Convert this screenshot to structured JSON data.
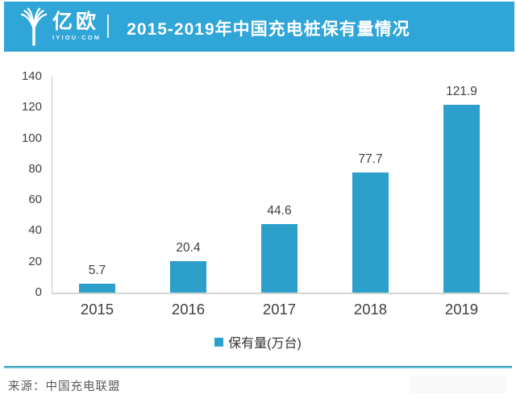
{
  "header": {
    "logo": {
      "brand_cn": "亿欧",
      "brand_en": "IYIOU·COM"
    },
    "title": "2015-2019年中国充电桩保有量情况"
  },
  "chart_data": {
    "type": "bar",
    "title": "2015-2019年中国充电桩保有量情况",
    "categories": [
      "2015",
      "2016",
      "2017",
      "2018",
      "2019"
    ],
    "values": [
      5.7,
      20.4,
      44.6,
      77.7,
      121.9
    ],
    "series_name": "保有量(万台)",
    "xlabel": "",
    "ylabel": "",
    "ylim": [
      0,
      140
    ],
    "yticks": [
      0,
      20,
      40,
      60,
      80,
      100,
      120,
      140
    ],
    "grid": false,
    "legend_position": "bottom",
    "bar_color": "#2c9fcb"
  },
  "legend": {
    "label": "保有量(万台)"
  },
  "footer": {
    "source": "来源：中国充电联盟"
  },
  "colors": {
    "header_bg": "#2fa5d8",
    "bar": "#2c9fcb",
    "axis": "#c9c9c9",
    "rule": "#2f9dc1",
    "text": "#3f3f3f"
  }
}
